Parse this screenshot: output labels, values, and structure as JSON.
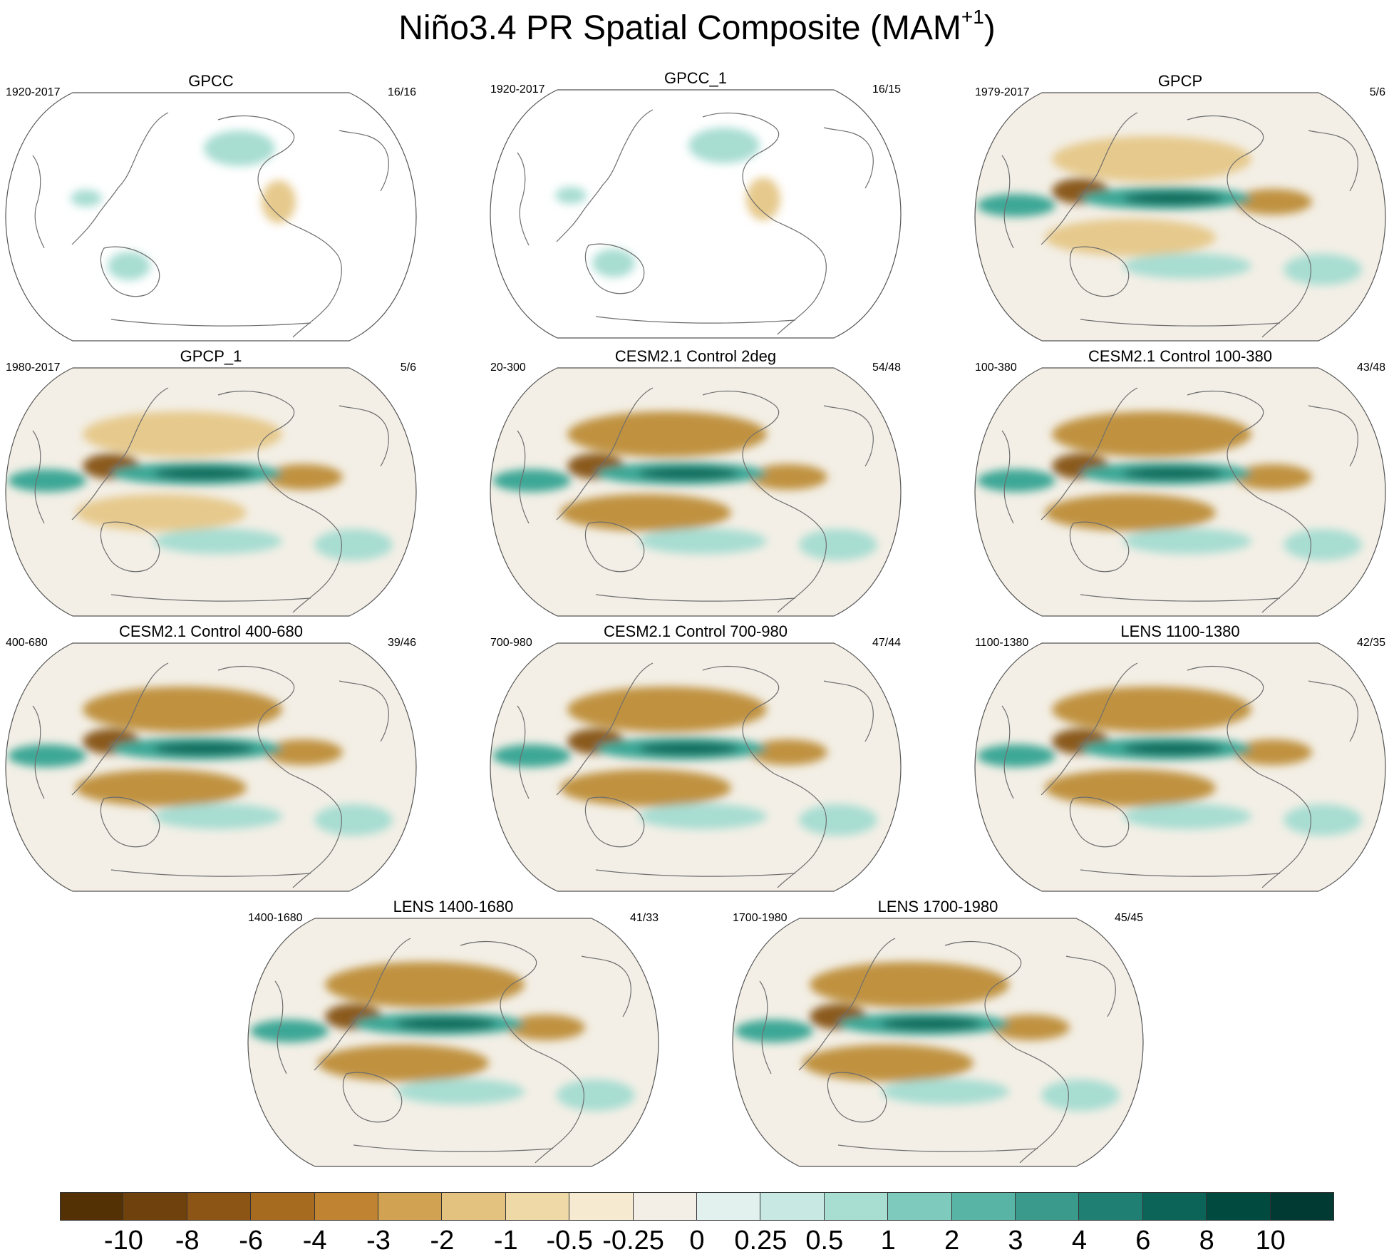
{
  "title": {
    "main": "Niño3.4 PR Spatial Composite (MAM",
    "superscript": "+1",
    "closing": ")"
  },
  "colors": {
    "ocean_neutral": "#f3efe6",
    "coast": "#6e6e6e",
    "frame": "#555555",
    "dry_strong": "#8a5a1c",
    "dry_medium": "#c0923f",
    "dry_weak": "#e6c98c",
    "wet_weak": "#a8ddd2",
    "wet_medium": "#3ea796",
    "wet_strong": "#0f6a5a"
  },
  "panels": [
    {
      "title": "GPCC",
      "period": "1920-2017",
      "count": "16/16",
      "dataset": "land"
    },
    {
      "title": "GPCC_1",
      "period": "1920-2017",
      "count": "16/15",
      "dataset": "land"
    },
    {
      "title": "GPCP",
      "period": "1979-2017",
      "count": "5/6",
      "dataset": "obs"
    },
    {
      "title": "GPCP_1",
      "period": "1980-2017",
      "count": "5/6",
      "dataset": "obs"
    },
    {
      "title": "CESM2.1 Control 2deg",
      "period": "20-300",
      "count": "54/48",
      "dataset": "model"
    },
    {
      "title": "CESM2.1 Control 100-380",
      "period": "100-380",
      "count": "43/48",
      "dataset": "model"
    },
    {
      "title": "CESM2.1 Control 400-680",
      "period": "400-680",
      "count": "39/46",
      "dataset": "model"
    },
    {
      "title": "CESM2.1 Control 700-980",
      "period": "700-980",
      "count": "47/44",
      "dataset": "model"
    },
    {
      "title": "LENS 1100-1380",
      "period": "1100-1380",
      "count": "42/35",
      "dataset": "model"
    },
    {
      "title": "LENS 1400-1680",
      "period": "1400-1680",
      "count": "41/33",
      "dataset": "model"
    },
    {
      "title": "LENS 1700-1980",
      "period": "1700-1980",
      "count": "45/45",
      "dataset": "model"
    }
  ],
  "colorbar": {
    "labels": [
      "-10",
      "-8",
      "-6",
      "-4",
      "-3",
      "-2",
      "-1",
      "-0.5",
      "-0.25",
      "0",
      "0.25",
      "0.5",
      "1",
      "2",
      "3",
      "4",
      "6",
      "8",
      "10"
    ],
    "colors": [
      "#543005",
      "#6f420d",
      "#8c5516",
      "#a66b1f",
      "#bf8331",
      "#d2a253",
      "#e3c17f",
      "#efd9a6",
      "#f6ead0",
      "#f3efe6",
      "#e2f1ee",
      "#c8e9e3",
      "#a8ddd2",
      "#7ecabd",
      "#58b5a6",
      "#3a9b8d",
      "#1f7f72",
      "#0c6458",
      "#014a40",
      "#003a32"
    ]
  }
}
